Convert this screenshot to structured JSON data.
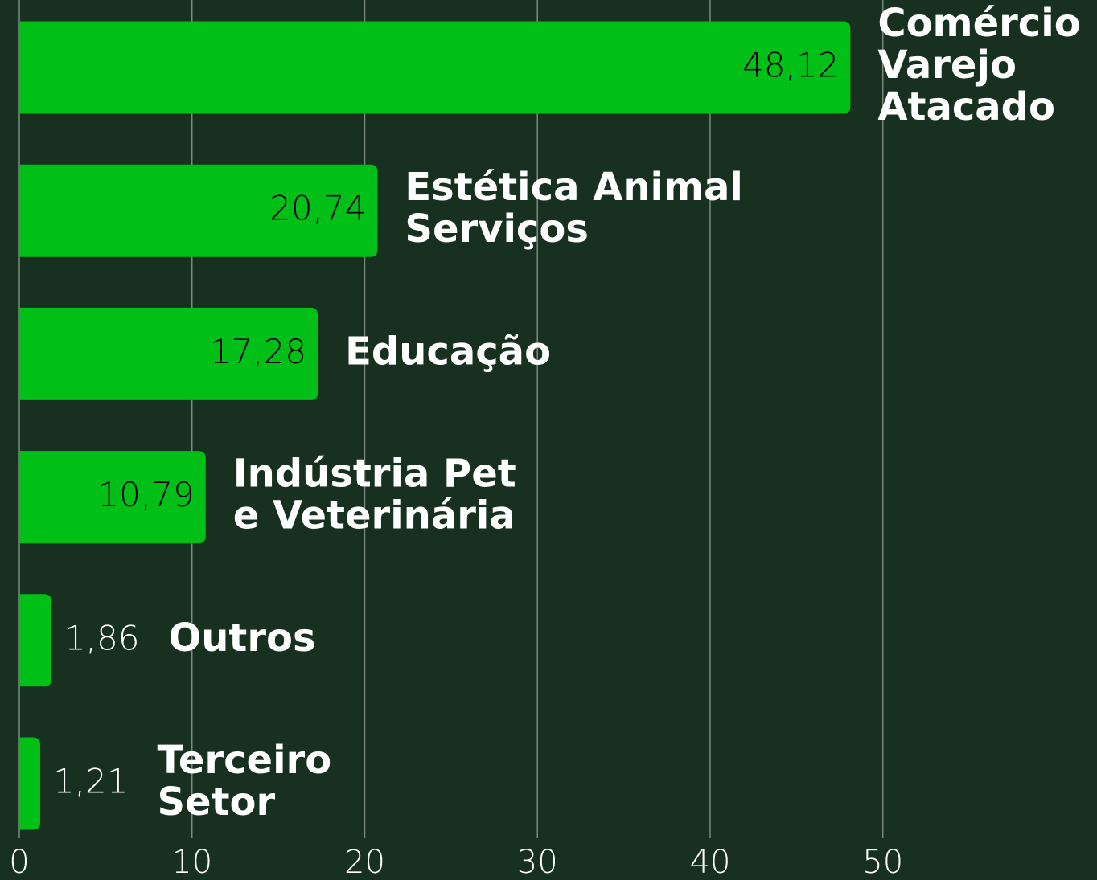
{
  "chart_data": {
    "type": "bar",
    "orientation": "horizontal",
    "categories": [
      [
        "Comércio",
        "Varejo",
        "Atacado"
      ],
      [
        "Estética Animal",
        "Serviços"
      ],
      [
        "Educação"
      ],
      [
        "Indústria Pet",
        "e Veterinária"
      ],
      [
        "Outros"
      ],
      [
        "Terceiro",
        "Setor"
      ]
    ],
    "values": [
      48.12,
      20.74,
      17.28,
      10.79,
      1.86,
      1.21
    ],
    "value_labels": [
      "48,12",
      "20,74",
      "17,28",
      "10,79",
      "1,86",
      "1,21"
    ],
    "color": "#00c018",
    "xlim": [
      0,
      62.4
    ],
    "xticks": [
      0,
      10,
      20,
      30,
      40,
      50
    ],
    "grid": true
  }
}
